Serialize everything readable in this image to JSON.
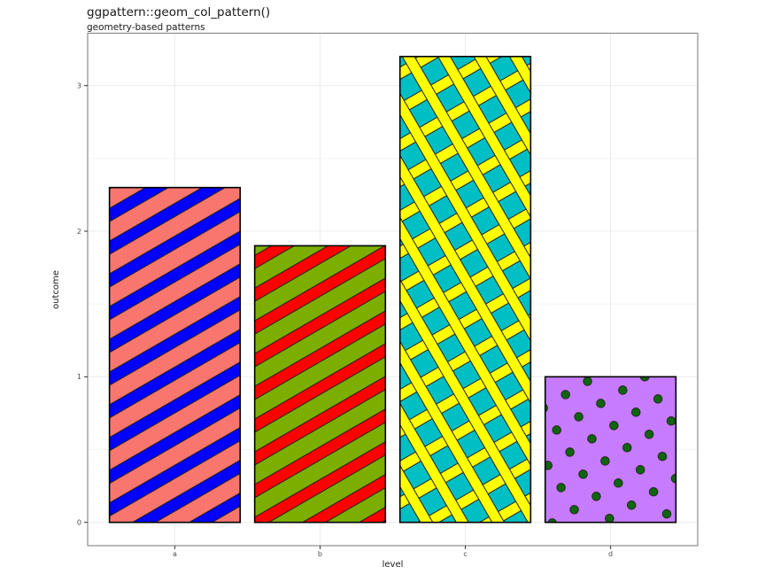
{
  "chart_data": {
    "type": "bar",
    "title": "ggpattern::geom_col_pattern()",
    "subtitle": "geometry-based patterns",
    "xlabel": "level",
    "ylabel": "outcome",
    "categories": [
      "a",
      "b",
      "c",
      "d"
    ],
    "values": [
      2.3,
      1.9,
      3.2,
      1
    ],
    "y_ticks": [
      0,
      1,
      2,
      3
    ],
    "y_minor_ticks": [
      0.5,
      1.5,
      2.5
    ],
    "ylim": [
      -0.16,
      3.36
    ],
    "bar_width_fraction": 0.9,
    "legend": "none",
    "grid": "on",
    "bars": [
      {
        "category": "a",
        "value": 2.3,
        "pattern": "stripe",
        "fill": "#F8766D",
        "pattern_fill": "#0000FF"
      },
      {
        "category": "b",
        "value": 1.9,
        "pattern": "stripe",
        "fill": "#7CAE00",
        "pattern_fill": "#FF0000"
      },
      {
        "category": "c",
        "value": 3.2,
        "pattern": "crosshatch",
        "fill": "#00BFC4",
        "pattern_fill": "#FFFF00"
      },
      {
        "category": "d",
        "value": 1.0,
        "pattern": "circle",
        "fill": "#C77CFF",
        "pattern_fill": "#0e650e"
      }
    ],
    "colors": {
      "background": "#ffffff",
      "panel_background": "#ffffff",
      "panel_border": "#8c8c8c",
      "grid_major": "#ebebeb",
      "grid_minor": "#f5f5f5",
      "bar_outline": "#000000",
      "pattern_outline": "#1f1f1f",
      "tick": "#333333",
      "tick_label": "#4d4d4d",
      "text": "#191919"
    }
  }
}
